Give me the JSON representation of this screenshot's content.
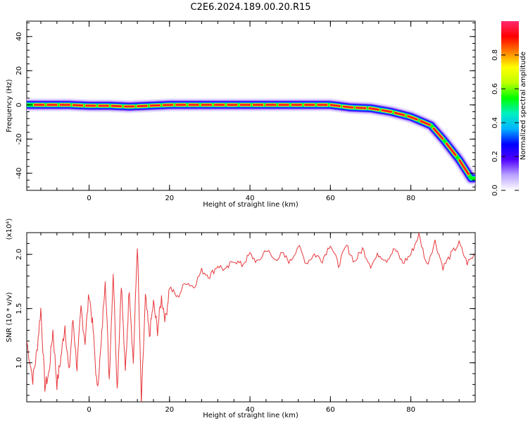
{
  "title": "C2E6.2024.189.00.20.R15",
  "chart_data": [
    {
      "type": "heatmap",
      "title": "C2E6.2024.189.00.20.R15",
      "xlabel": "Height of straight line (km)",
      "ylabel": "Frequency (Hz)",
      "xlim": [
        -15.5,
        96
      ],
      "ylim": [
        -50,
        49
      ],
      "x_ticks": [
        0,
        20,
        40,
        60,
        80
      ],
      "y_ticks": [
        40,
        20,
        0,
        -20,
        -40
      ],
      "colorbar": {
        "label": "Normalized spectral amplitude",
        "range": [
          0.0,
          1.0
        ],
        "ticks": [
          "0.0",
          "0.2",
          "0.4",
          "0.6",
          "0.8"
        ],
        "tick_values": [
          0.0,
          0.2,
          0.4,
          0.6,
          0.8
        ],
        "colormap": [
          "#ffffff",
          "#b9a2ff",
          "#5000ff",
          "#0000ff",
          "#00b4ff",
          "#00f0c0",
          "#00ff00",
          "#bfff00",
          "#ffff00",
          "#ff7f00",
          "#ff0000",
          "#ff2a6e"
        ]
      },
      "ridge": {
        "x": [
          -15,
          -10,
          -5,
          0,
          5,
          10,
          20,
          30,
          40,
          50,
          60,
          65,
          70,
          75,
          80,
          85,
          88,
          90,
          92,
          95
        ],
        "freq": [
          0,
          0,
          0,
          -0.5,
          -0.5,
          -1,
          0,
          0,
          0,
          0,
          0,
          -1.5,
          -2,
          -4,
          -7,
          -12,
          -20,
          -26,
          -32,
          -43
        ]
      }
    },
    {
      "type": "line",
      "xlabel": "Height of straight line (km)",
      "ylabel": "SNR (10 * v/v)",
      "y_multiplier": "(x10⁴)",
      "xlim": [
        -15.5,
        96
      ],
      "ylim": [
        0.64,
        2.2
      ],
      "x_ticks": [
        0,
        20,
        40,
        60,
        80
      ],
      "y_ticks": [
        1.0,
        1.5,
        2.0
      ],
      "y_tick_labels": [
        "1.0",
        "1.5",
        "2.0"
      ],
      "line_color": "#e8383d",
      "series": [
        {
          "x": [
            -15.5,
            -14,
            -13,
            -12,
            -11,
            -10,
            -9,
            -8,
            -7,
            -6,
            -5,
            -4,
            -3,
            -2,
            -1,
            0,
            1,
            2,
            3,
            4,
            5,
            6,
            7,
            8,
            9,
            10,
            11,
            12,
            13,
            14,
            15,
            16,
            17,
            18,
            19,
            20,
            22,
            24,
            26,
            28,
            30,
            32,
            34,
            36,
            38,
            40,
            42,
            44,
            46,
            48,
            50,
            52,
            54,
            56,
            58,
            60,
            62,
            64,
            66,
            68,
            70,
            72,
            74,
            76,
            78,
            80,
            82,
            84,
            86,
            88,
            90,
            92,
            94,
            96
          ],
          "y": [
            1.2,
            0.85,
            1.1,
            1.5,
            0.78,
            0.9,
            1.3,
            0.8,
            1.05,
            1.35,
            0.9,
            1.4,
            0.95,
            1.5,
            1.2,
            1.65,
            1.3,
            0.75,
            1.15,
            1.8,
            0.85,
            1.85,
            0.75,
            1.75,
            0.9,
            1.7,
            1.0,
            2.1,
            0.62,
            1.6,
            1.25,
            1.55,
            1.3,
            1.6,
            1.4,
            1.7,
            1.6,
            1.75,
            1.7,
            1.85,
            1.8,
            1.9,
            1.85,
            1.95,
            1.9,
            2.0,
            1.92,
            2.05,
            1.95,
            2.0,
            1.93,
            2.08,
            1.92,
            2.0,
            1.95,
            2.1,
            1.9,
            2.08,
            1.93,
            2.05,
            1.9,
            2.0,
            1.95,
            2.05,
            1.92,
            2.0,
            2.18,
            1.9,
            2.12,
            1.88,
            2.0,
            2.1,
            1.92,
            2.0
          ]
        }
      ]
    }
  ]
}
